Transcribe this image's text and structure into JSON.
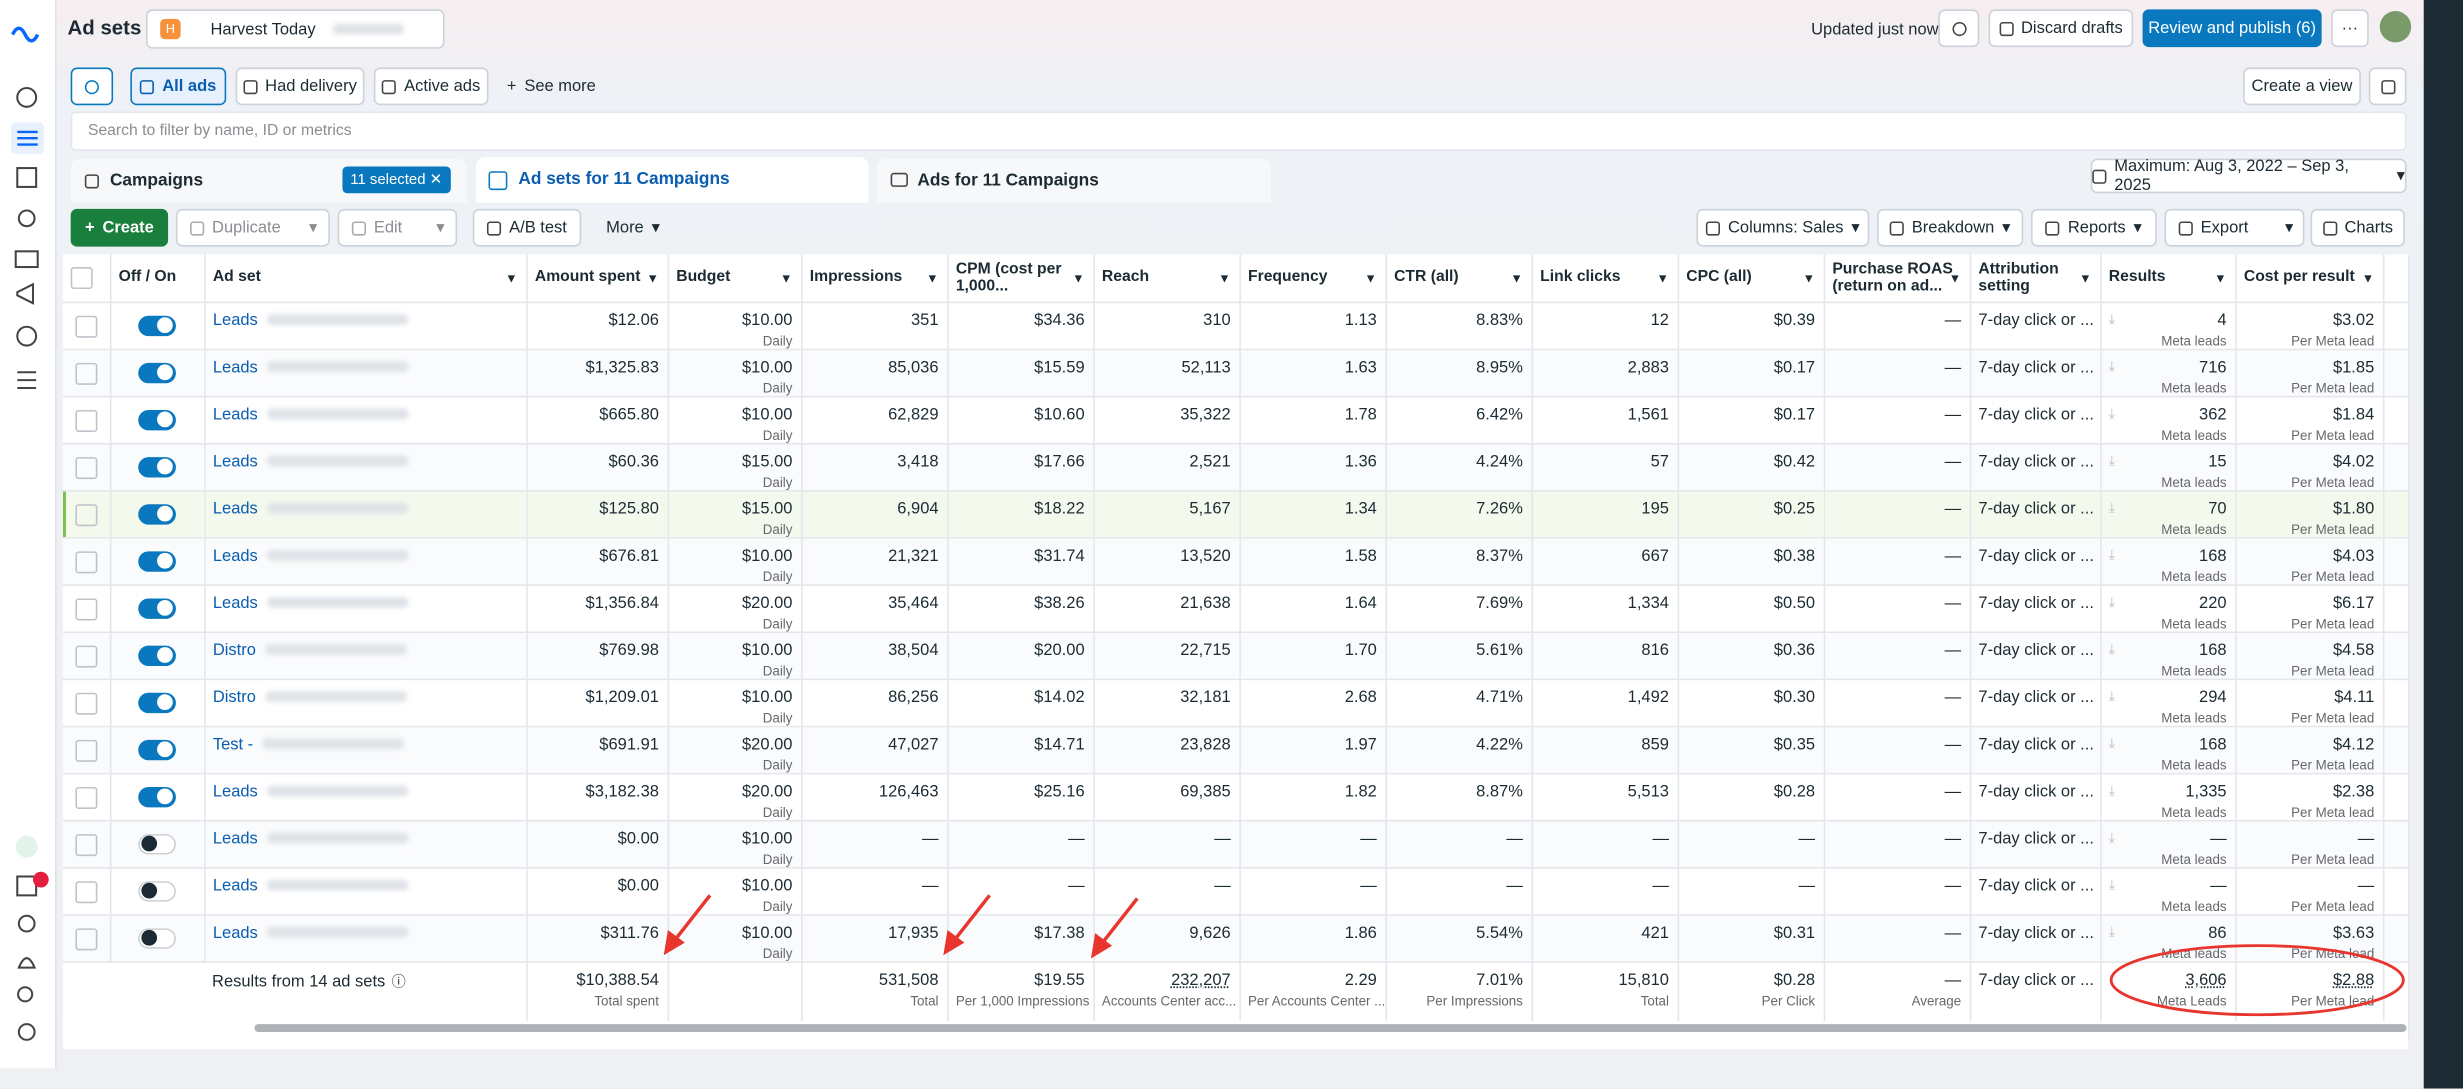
{
  "header": {
    "title": "Ad sets",
    "account": "Harvest Today",
    "status": "Updated just now",
    "discard": "Discard drafts",
    "publish": "Review and publish (6)"
  },
  "filters": {
    "items": [
      "All ads",
      "Had delivery",
      "Active ads",
      "See more"
    ],
    "create_view": "Create a view",
    "search_placeholder": "Search to filter by name, ID or metrics"
  },
  "tabs": {
    "campaigns": "Campaigns",
    "selected": "11 selected",
    "adsets": "Ad sets for 11 Campaigns",
    "ads": "Ads for 11 Campaigns",
    "date_range": "Maximum: Aug 3, 2022 – Sep 3, 2025"
  },
  "actions": {
    "left": [
      "Create",
      "Duplicate",
      "Edit",
      "A/B test",
      "More"
    ],
    "right": [
      "Columns: Sales",
      "Breakdown",
      "Reports",
      "Export",
      "Charts"
    ]
  },
  "table": {
    "columns": [
      "Off / On",
      "Ad set",
      "Amount spent",
      "Budget",
      "Impressions",
      "CPM (cost per 1,000...",
      "Reach",
      "Frequency",
      "CTR (all)",
      "Link clicks",
      "CPC (all)",
      "Purchase ROAS (return on ad...",
      "Attribution setting",
      "Results",
      "Cost per result"
    ],
    "rows": [
      {
        "on": true,
        "cells": [
          "Leads",
          "$12.06",
          "$10.00",
          "351",
          "$34.36",
          "310",
          "1.13",
          "8.83%",
          "12",
          "$0.39",
          "—",
          "7-day click or ...",
          "4",
          "$3.02"
        ],
        "budget_note": "Daily",
        "results_note": "Meta leads",
        "cost_note": "Per Meta lead"
      },
      {
        "on": true,
        "cells": [
          "Leads",
          "$1,325.83",
          "$10.00",
          "85,036",
          "$15.59",
          "52,113",
          "1.63",
          "8.95%",
          "2,883",
          "$0.17",
          "—",
          "7-day click or ...",
          "716",
          "$1.85"
        ],
        "budget_note": "Daily",
        "results_note": "Meta leads",
        "cost_note": "Per Meta lead"
      },
      {
        "on": true,
        "cells": [
          "Leads",
          "$665.80",
          "$10.00",
          "62,829",
          "$10.60",
          "35,322",
          "1.78",
          "6.42%",
          "1,561",
          "$0.17",
          "—",
          "7-day click or ...",
          "362",
          "$1.84"
        ],
        "budget_note": "Daily",
        "results_note": "Meta leads",
        "cost_note": "Per Meta lead"
      },
      {
        "on": true,
        "cells": [
          "Leads",
          "$60.36",
          "$15.00",
          "3,418",
          "$17.66",
          "2,521",
          "1.36",
          "4.24%",
          "57",
          "$0.42",
          "—",
          "7-day click or ...",
          "15",
          "$4.02"
        ],
        "budget_note": "Daily",
        "results_note": "Meta leads",
        "cost_note": "Per Meta lead"
      },
      {
        "on": true,
        "cells": [
          "Leads",
          "$125.80",
          "$15.00",
          "6,904",
          "$18.22",
          "5,167",
          "1.34",
          "7.26%",
          "195",
          "$0.25",
          "—",
          "7-day click or ...",
          "70",
          "$1.80"
        ],
        "budget_note": "Daily",
        "results_note": "Meta leads",
        "cost_note": "Per Meta lead"
      },
      {
        "on": true,
        "cells": [
          "Leads",
          "$676.81",
          "$10.00",
          "21,321",
          "$31.74",
          "13,520",
          "1.58",
          "8.37%",
          "667",
          "$0.38",
          "—",
          "7-day click or ...",
          "168",
          "$4.03"
        ],
        "budget_note": "Daily",
        "results_note": "Meta leads",
        "cost_note": "Per Meta lead"
      },
      {
        "on": true,
        "cells": [
          "Leads",
          "$1,356.84",
          "$20.00",
          "35,464",
          "$38.26",
          "21,638",
          "1.64",
          "7.69%",
          "1,334",
          "$0.50",
          "—",
          "7-day click or ...",
          "220",
          "$6.17"
        ],
        "budget_note": "Daily",
        "results_note": "Meta leads",
        "cost_note": "Per Meta lead"
      },
      {
        "on": true,
        "cells": [
          "Distro",
          "$769.98",
          "$10.00",
          "38,504",
          "$20.00",
          "22,715",
          "1.70",
          "5.61%",
          "816",
          "$0.36",
          "—",
          "7-day click or ...",
          "168",
          "$4.58"
        ],
        "budget_note": "Daily",
        "results_note": "Meta leads",
        "cost_note": "Per Meta lead"
      },
      {
        "on": true,
        "cells": [
          "Distro",
          "$1,209.01",
          "$10.00",
          "86,256",
          "$14.02",
          "32,181",
          "2.68",
          "4.71%",
          "1,492",
          "$0.30",
          "—",
          "7-day click or ...",
          "294",
          "$4.11"
        ],
        "budget_note": "Daily",
        "results_note": "Meta leads",
        "cost_note": "Per Meta lead"
      },
      {
        "on": true,
        "cells": [
          "Test -",
          "$691.91",
          "$20.00",
          "47,027",
          "$14.71",
          "23,828",
          "1.97",
          "4.22%",
          "859",
          "$0.35",
          "—",
          "7-day click or ...",
          "168",
          "$4.12"
        ],
        "budget_note": "Daily",
        "results_note": "Meta leads",
        "cost_note": "Per Meta lead"
      },
      {
        "on": true,
        "cells": [
          "Leads",
          "$3,182.38",
          "$20.00",
          "126,463",
          "$25.16",
          "69,385",
          "1.82",
          "8.87%",
          "5,513",
          "$0.28",
          "—",
          "7-day click or ...",
          "1,335",
          "$2.38"
        ],
        "budget_note": "Daily",
        "results_note": "Meta leads",
        "cost_note": "Per Meta lead"
      },
      {
        "on": false,
        "cells": [
          "Leads",
          "$0.00",
          "$10.00",
          "—",
          "—",
          "—",
          "—",
          "—",
          "—",
          "—",
          "—",
          "7-day click or ...",
          "—",
          "—"
        ],
        "budget_note": "Daily",
        "results_note": "Meta leads",
        "cost_note": "Per Meta lead"
      },
      {
        "on": false,
        "cells": [
          "Leads",
          "$0.00",
          "$10.00",
          "—",
          "—",
          "—",
          "—",
          "—",
          "—",
          "—",
          "—",
          "7-day click or ...",
          "—",
          "—"
        ],
        "budget_note": "Daily",
        "results_note": "Meta leads",
        "cost_note": "Per Meta lead"
      },
      {
        "on": false,
        "cells": [
          "Leads",
          "$311.76",
          "$10.00",
          "17,935",
          "$17.38",
          "9,626",
          "1.86",
          "5.54%",
          "421",
          "$0.31",
          "—",
          "7-day click or ...",
          "86",
          "$3.63"
        ],
        "budget_note": "Daily",
        "results_note": "Meta leads",
        "cost_note": "Per Meta lead"
      }
    ],
    "highlighted_row": 4,
    "footer": {
      "label": "Results from 14 ad sets",
      "cells": [
        {
          "value": "$10,388.54",
          "note": "Total spent"
        },
        null,
        {
          "value": "531,508",
          "note": "Total"
        },
        {
          "value": "$19.55",
          "note": "Per 1,000 Impressions"
        },
        {
          "value": "232,207",
          "note": "Accounts Center acc..."
        },
        {
          "value": "2.29",
          "note": "Per Accounts Center ..."
        },
        {
          "value": "7.01%",
          "note": "Per Impressions"
        },
        {
          "value": "15,810",
          "note": "Total"
        },
        {
          "value": "$0.28",
          "note": "Per Click"
        },
        {
          "value": "—",
          "note": "Average"
        },
        {
          "value": "7-day click or ..."
        },
        {
          "value": "3,606",
          "note": "Meta Leads"
        },
        {
          "value": "$2.88",
          "note": "Per Meta lead"
        }
      ]
    }
  }
}
